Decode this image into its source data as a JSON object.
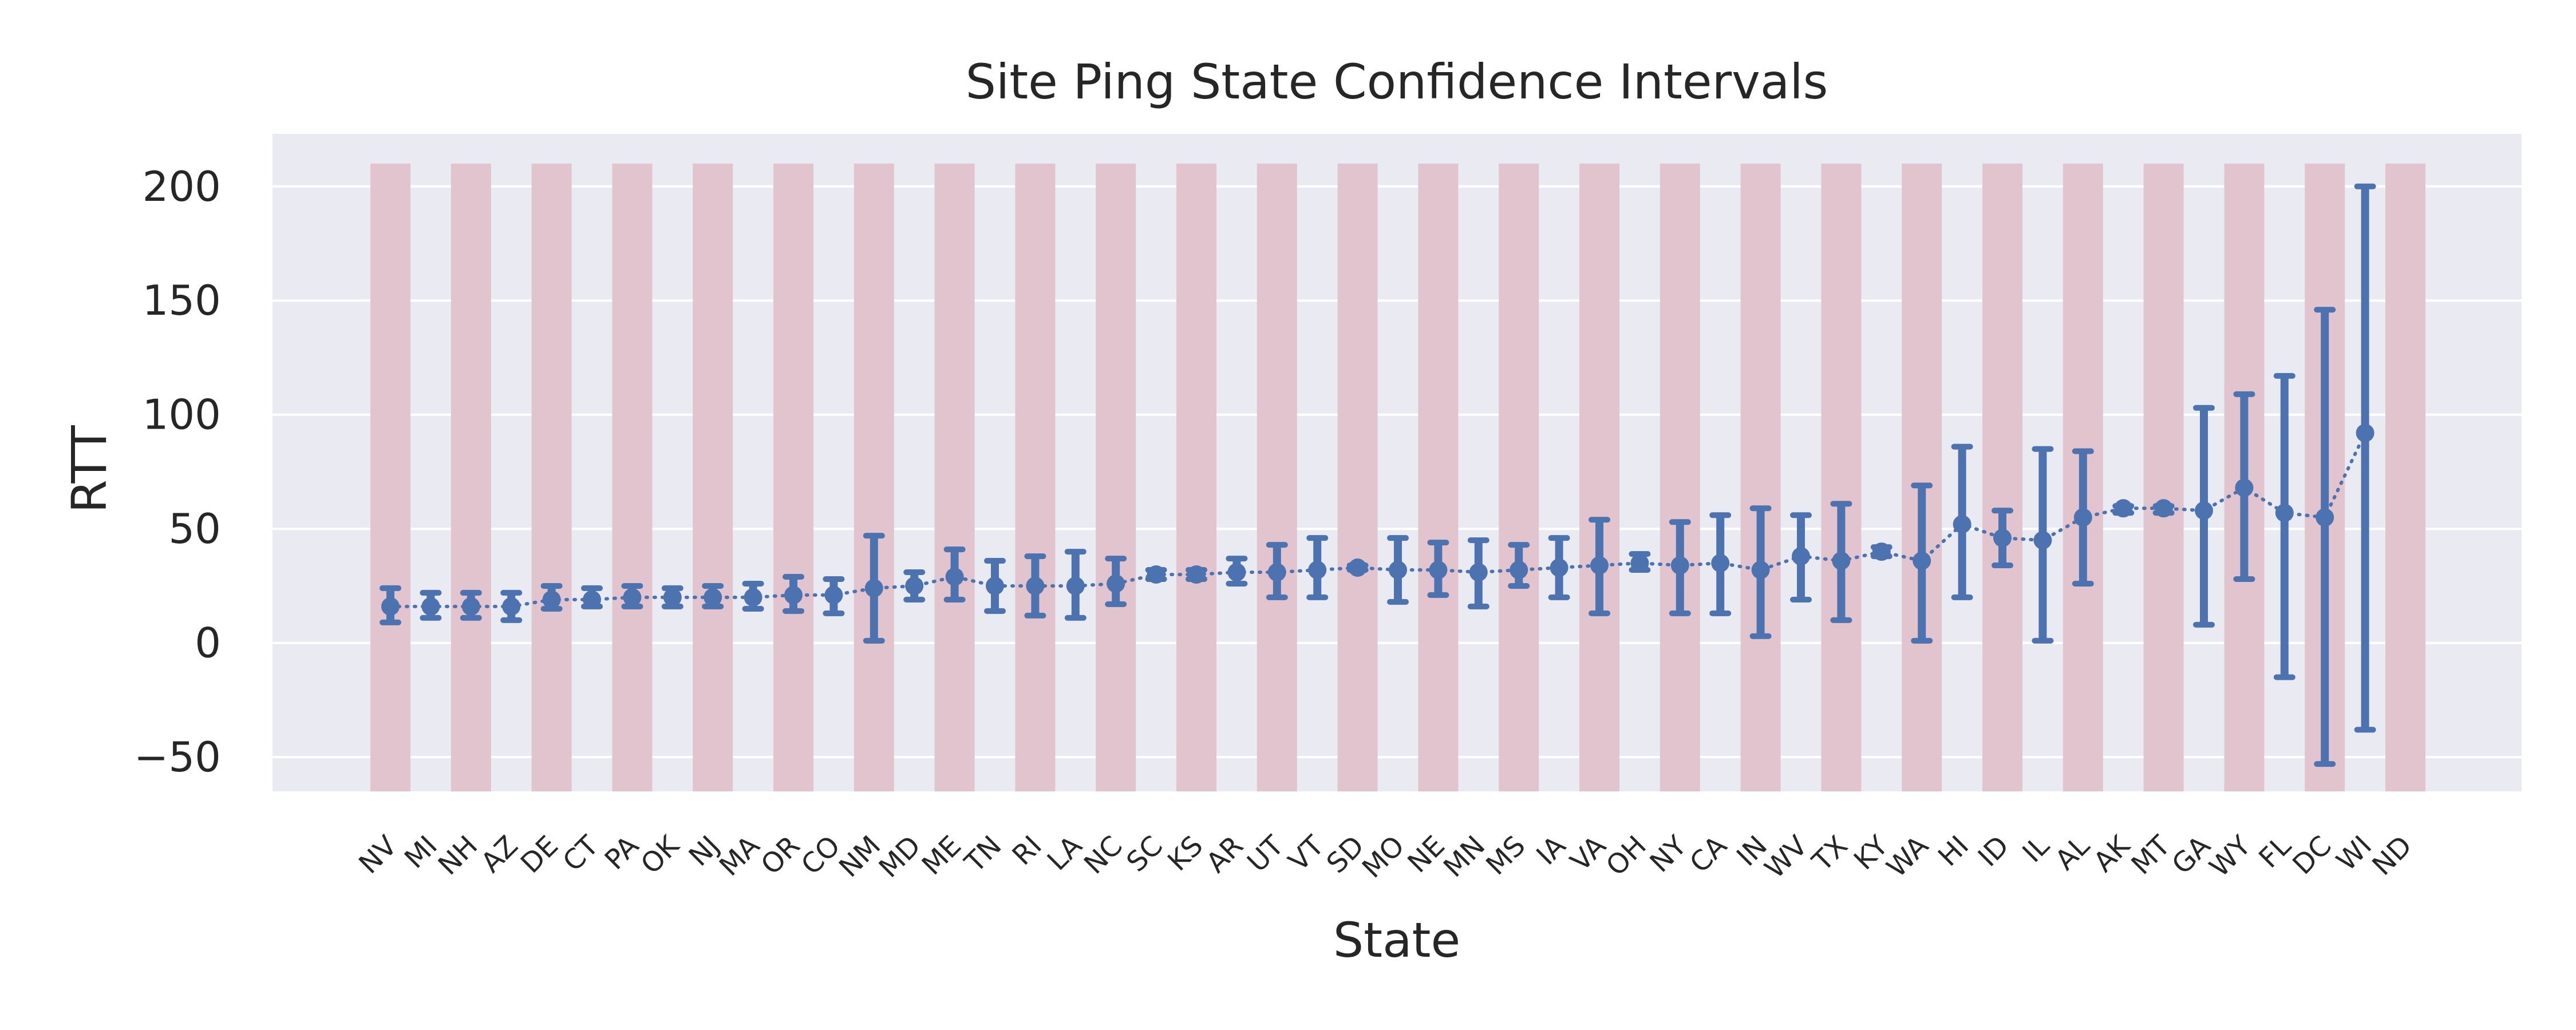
{
  "chart_data": {
    "type": "errorbar",
    "title": "Site Ping State Confidence Intervals",
    "xlabel": "State",
    "ylabel": "RTT",
    "ylim": [
      -65,
      223
    ],
    "yticks": [
      -50,
      0,
      50,
      100,
      150,
      200
    ],
    "grid": true,
    "background_bands": {
      "range": [
        -65,
        210
      ],
      "every_other_category": true,
      "color": "#dbb1bf"
    },
    "colors": {
      "plot_bg": "#eaeaf2",
      "grid": "#ffffff",
      "series": "#4c72b0",
      "band": "#e2c4cf"
    },
    "categories": [
      "NV",
      "MI",
      "NH",
      "AZ",
      "DE",
      "CT",
      "PA",
      "OK",
      "NJ",
      "MA",
      "OR",
      "CO",
      "NM",
      "MD",
      "ME",
      "TN",
      "RI",
      "LA",
      "NC",
      "SC",
      "KS",
      "AR",
      "UT",
      "VT",
      "SD",
      "MO",
      "NE",
      "MN",
      "MS",
      "IA",
      "VA",
      "OH",
      "NY",
      "CA",
      "IN",
      "WV",
      "TX",
      "KY",
      "WA",
      "HI",
      "ID",
      "IL",
      "AL",
      "AK",
      "MT",
      "GA",
      "WY",
      "FL",
      "DC",
      "WI",
      "ND"
    ],
    "series": [
      {
        "mean": [
          16,
          16,
          16,
          16,
          19,
          19,
          20,
          20,
          20,
          20,
          21,
          21,
          24,
          25,
          29,
          25,
          25,
          25,
          26,
          30,
          30,
          31,
          31,
          32,
          33,
          32,
          32,
          31,
          32,
          33,
          34,
          35,
          34,
          35,
          32,
          38,
          36,
          40,
          36,
          52,
          46,
          45,
          55,
          59,
          59,
          58,
          68,
          57,
          55,
          92,
          null
        ],
        "lower": [
          9,
          11,
          11,
          10,
          15,
          16,
          16,
          16,
          16,
          15,
          14,
          13,
          1,
          19,
          19,
          14,
          12,
          11,
          17,
          28,
          28,
          26,
          20,
          20,
          32,
          18,
          21,
          16,
          25,
          20,
          13,
          32,
          13,
          13,
          3,
          19,
          10,
          38,
          1,
          20,
          34,
          1,
          26,
          57,
          57,
          8,
          28,
          -15,
          -53,
          -38,
          null
        ],
        "upper": [
          24,
          22,
          22,
          22,
          25,
          24,
          25,
          24,
          25,
          26,
          29,
          28,
          47,
          31,
          41,
          36,
          38,
          40,
          37,
          32,
          32,
          37,
          43,
          46,
          34,
          46,
          44,
          45,
          43,
          46,
          54,
          39,
          53,
          56,
          59,
          56,
          61,
          42,
          69,
          86,
          58,
          85,
          84,
          60,
          60,
          103,
          109,
          117,
          146,
          200,
          null
        ]
      }
    ]
  }
}
